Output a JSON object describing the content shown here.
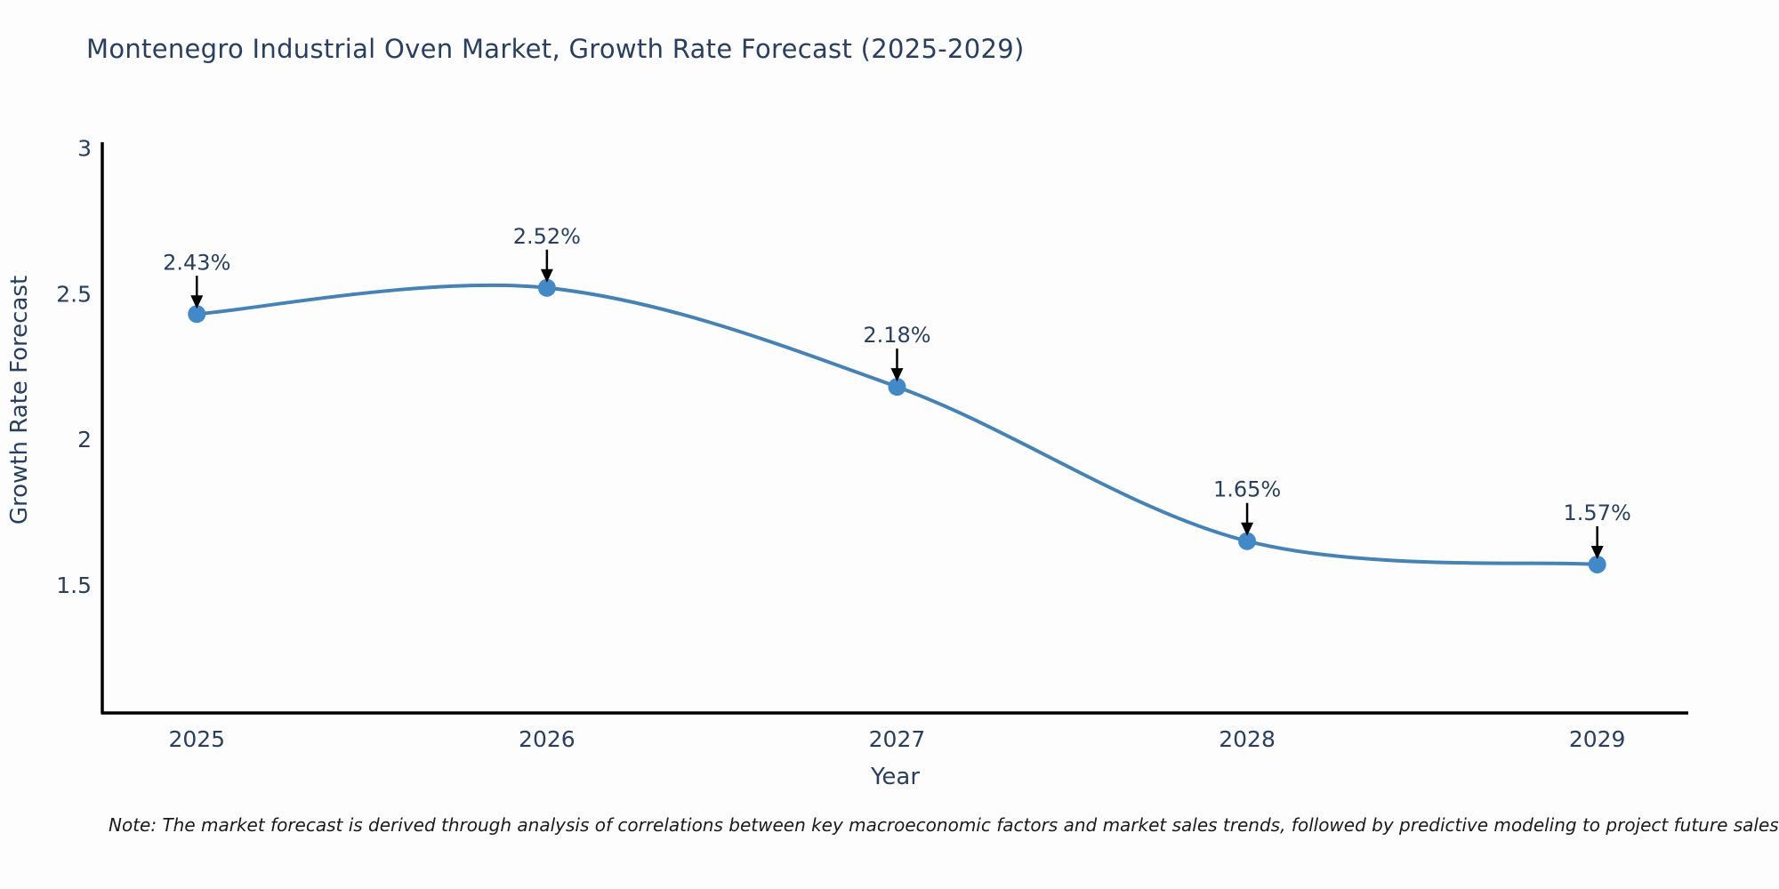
{
  "title": "Montenegro Industrial Oven Market, Growth Rate Forecast (2025-2029)",
  "note": "Note: The market forecast is derived through analysis of correlations between key macroeconomic factors and market sales trends, followed by predictive modeling to project future sales",
  "chart_data": {
    "type": "line",
    "x": [
      2025,
      2026,
      2027,
      2028,
      2029
    ],
    "xtick_labels": [
      "2025",
      "2026",
      "2027",
      "2028",
      "2029"
    ],
    "series": [
      {
        "name": "Growth Rate Forecast",
        "values": [
          2.43,
          2.52,
          2.18,
          1.65,
          1.57
        ]
      }
    ],
    "point_labels": [
      "2.43%",
      "2.52%",
      "2.18%",
      "1.65%",
      "1.57%"
    ],
    "title": "Montenegro Industrial Oven Market, Growth Rate Forecast (2025-2029)",
    "xlabel": "Year",
    "ylabel": "Growth Rate Forecast",
    "yticks": [
      3,
      2.5,
      2,
      1.5
    ],
    "ytick_labels": [
      "3",
      "2.5",
      "2",
      "1.5"
    ],
    "ylim": [
      1.06,
      3.02
    ],
    "xlim": [
      2024.73,
      2029.26
    ],
    "grid": false,
    "legend": "none",
    "annotation_style": "label-above-with-black-arrow",
    "colors": {
      "line": "#4682b4",
      "marker": "#4489c7",
      "axis": "#000000",
      "text": "#2a3f5f",
      "note_text": "#1a1a1a",
      "background": "#fdfdfd"
    }
  }
}
